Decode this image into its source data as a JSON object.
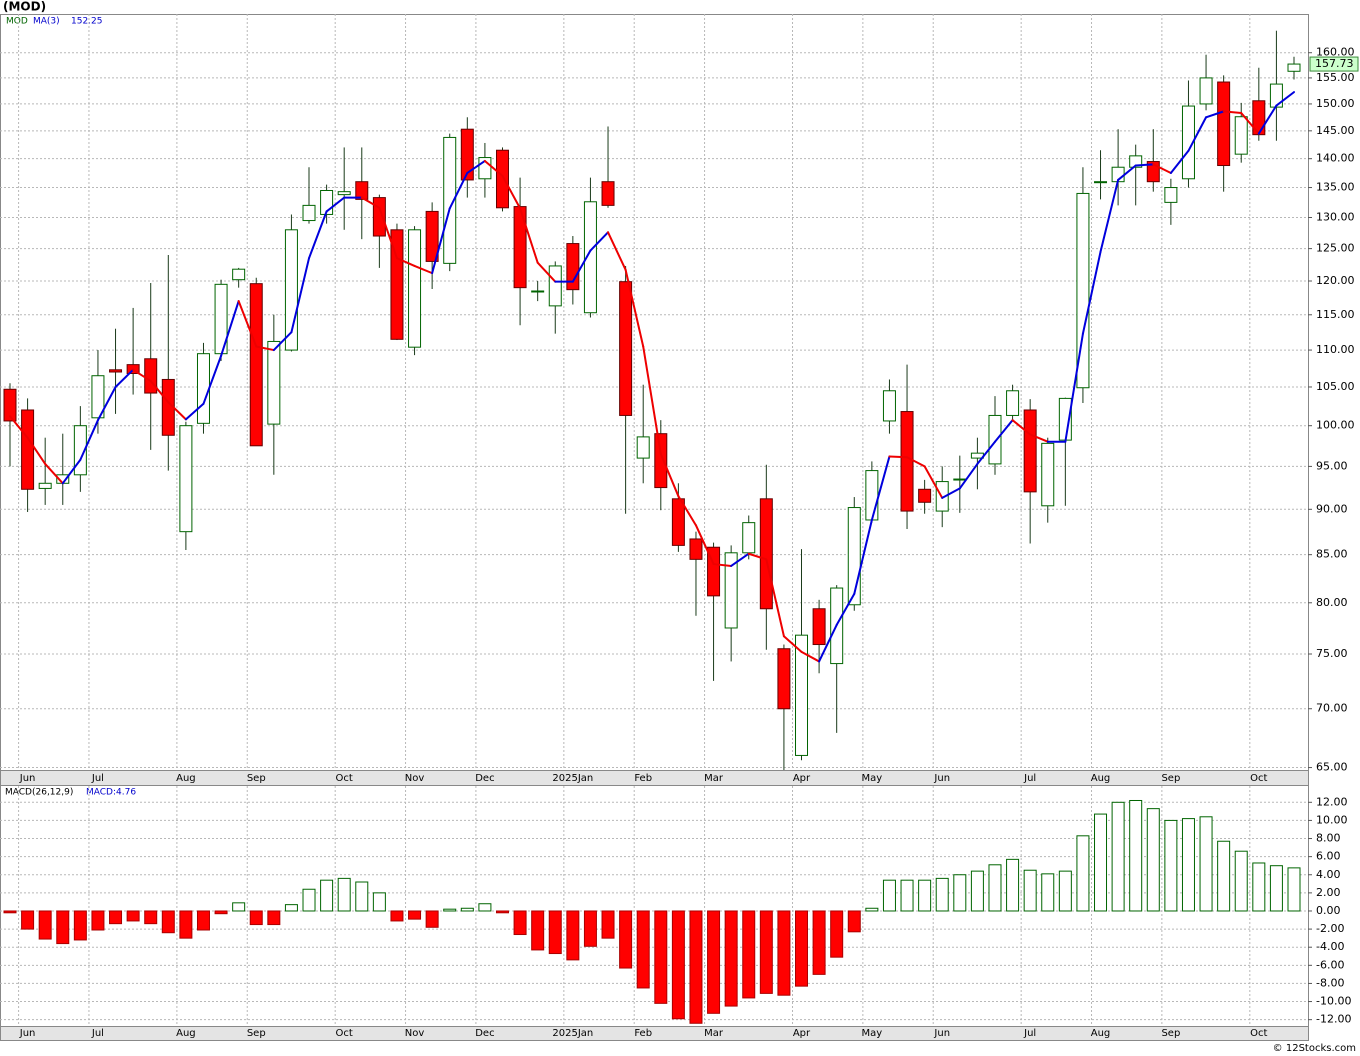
{
  "title": "(MOD)",
  "footer": "© 12Stocks.com",
  "chart_data": [
    {
      "type": "candlestick",
      "symbol": "MOD",
      "log_scale": true,
      "grid": true,
      "up_color": "#006400",
      "down_color": "#ff0000",
      "wick_color": "#1a3a1a",
      "categories": [
        null,
        "Jun",
        null,
        null,
        null,
        "Jul",
        null,
        null,
        null,
        null,
        "Aug",
        null,
        null,
        null,
        "Sep",
        null,
        null,
        null,
        null,
        "Oct",
        null,
        null,
        null,
        "Nov",
        null,
        null,
        null,
        "Dec",
        null,
        null,
        null,
        null,
        "2025Jan",
        null,
        null,
        null,
        "Feb",
        null,
        null,
        null,
        "Mar",
        null,
        null,
        null,
        null,
        "Apr",
        null,
        null,
        null,
        "May",
        null,
        null,
        null,
        "Jun",
        null,
        null,
        null,
        null,
        "Jul",
        null,
        null,
        null,
        "Aug",
        null,
        null,
        null,
        "Sep",
        null,
        null,
        null,
        null,
        "Oct",
        null,
        null
      ],
      "open": [
        104.7,
        102,
        92.4,
        93,
        94,
        101,
        107.3,
        108,
        108.8,
        106,
        87.5,
        100.3,
        109.5,
        120.2,
        119.6,
        100.2,
        110,
        129.5,
        130.5,
        133.8,
        136,
        133.3,
        128,
        110.4,
        131,
        122.7,
        145.3,
        136.5,
        141.5,
        131.8,
        118.5,
        116.3,
        125.8,
        115.3,
        136,
        119.9,
        96,
        99,
        91.2,
        86.7,
        85.8,
        77.5,
        85.2,
        91.2,
        75.5,
        66,
        79.4,
        74.1,
        79.8,
        88.8,
        100.6,
        101.8,
        92.3,
        89.8,
        93.5,
        96,
        95.3,
        101.3,
        102,
        90.4,
        98.2,
        104.9,
        136,
        136,
        138.5,
        139.5,
        132.5,
        136.5,
        150,
        154.2,
        140.8,
        150.6,
        149.4,
        156.3
      ],
      "high": [
        105.5,
        103.5,
        98.5,
        99,
        102.5,
        110,
        113,
        116,
        119.7,
        124,
        100.5,
        111,
        120.2,
        122,
        120.5,
        115,
        130.5,
        138.5,
        135.5,
        142,
        142,
        133.8,
        129,
        128.6,
        132.5,
        144.5,
        147.5,
        142.8,
        142,
        136.7,
        120,
        123,
        127,
        136.7,
        145.8,
        122.3,
        105.3,
        100.7,
        93,
        87.5,
        86.3,
        86,
        89.3,
        95.2,
        75.9,
        85.6,
        80.3,
        81.8,
        91.4,
        95.6,
        106,
        108,
        93.4,
        95,
        96.3,
        98.5,
        103.8,
        105.3,
        103.4,
        98.5,
        103.6,
        138.5,
        141.5,
        145.3,
        142.5,
        145.3,
        136.5,
        154.5,
        159.6,
        155.5,
        150.2,
        157,
        164.5,
        159.2
      ],
      "low": [
        95,
        89.7,
        90.5,
        90.5,
        92,
        99,
        101.5,
        104,
        97,
        94.5,
        85.5,
        99,
        108.5,
        119,
        97.5,
        94,
        109.8,
        129,
        129,
        128,
        126.5,
        122,
        111.4,
        109.3,
        118.8,
        121.5,
        133.3,
        133.3,
        131,
        113.5,
        117,
        112.3,
        116.5,
        114.6,
        131.6,
        89.5,
        93,
        89.9,
        85.3,
        78.7,
        72.5,
        74.3,
        84.5,
        75.4,
        64.8,
        65.6,
        73.2,
        67.9,
        79.2,
        88.5,
        99,
        87.8,
        89.5,
        88,
        89.6,
        92.3,
        94,
        100.5,
        86.2,
        88.5,
        90.4,
        102.9,
        133,
        132,
        132,
        134.3,
        128.8,
        135,
        148.8,
        134.3,
        139.3,
        143.2,
        143.2,
        154.7
      ],
      "close": [
        100.6,
        92.3,
        93,
        94,
        100,
        106.5,
        107,
        106.8,
        104.2,
        98.8,
        100,
        109.5,
        119.5,
        121.8,
        97.5,
        111.2,
        128,
        132,
        134.5,
        134.3,
        133,
        127,
        111.5,
        128,
        123,
        143.8,
        136.3,
        140.2,
        131.6,
        119,
        118.5,
        122.3,
        118.7,
        132.6,
        132,
        101.3,
        98.6,
        92.5,
        86,
        84.5,
        80.7,
        85.2,
        88.5,
        79.4,
        70,
        76.8,
        75.9,
        81.5,
        90.2,
        94.5,
        104.5,
        89.8,
        90.8,
        93.2,
        93.5,
        96.6,
        101.3,
        104.5,
        92,
        97.8,
        103.5,
        134,
        136,
        138.5,
        140.5,
        136,
        135,
        149.6,
        155,
        138.8,
        147.6,
        144.3,
        153.8,
        157.73
      ],
      "close_label": "157.73",
      "close_label_color": "#ccffcc",
      "ma": {
        "name": "MA(3)",
        "value_label": "152.25",
        "up_color": "#0000dd",
        "down_color": "#ee0000",
        "values": [
          101.2,
          98.5,
          95.3,
          93,
          95.8,
          100.7,
          105,
          107.3,
          105.8,
          103,
          100.8,
          102.8,
          109.2,
          117,
          110.5,
          110,
          112.5,
          123.5,
          131,
          133.3,
          133.3,
          131.6,
          123.5,
          122.3,
          121.2,
          131.5,
          137.5,
          139.6,
          137,
          131.5,
          122.8,
          119.9,
          119.9,
          124.7,
          127.6,
          121.7,
          110.5,
          96.5,
          91.5,
          88.2,
          84,
          83.8,
          85.1,
          84.5,
          76.7,
          75.2,
          74.3,
          77.8,
          80.9,
          88.8,
          96.2,
          96.1,
          95,
          91.3,
          92.4,
          95.3,
          98,
          100.7,
          98.9,
          98,
          98,
          112.3,
          124.5,
          136.3,
          138.8,
          139,
          137.5,
          141.4,
          147.5,
          148.6,
          148.3,
          144.5,
          149.7,
          152.25
        ]
      },
      "ylim": [
        64.8,
        168
      ],
      "yticks": [
        {
          "value": 65,
          "label": "65.00"
        },
        {
          "value": 70,
          "label": "70.00"
        },
        {
          "value": 75,
          "label": "75.00"
        },
        {
          "value": 80,
          "label": "80.00"
        },
        {
          "value": 85,
          "label": "85.00"
        },
        {
          "value": 90,
          "label": "90.00"
        },
        {
          "value": 95,
          "label": "95.00"
        },
        {
          "value": 100,
          "label": "100.00"
        },
        {
          "value": 105,
          "label": "105.00"
        },
        {
          "value": 110,
          "label": "110.00"
        },
        {
          "value": 115,
          "label": "115.00"
        },
        {
          "value": 120,
          "label": "120.00"
        },
        {
          "value": 125,
          "label": "125.00"
        },
        {
          "value": 130,
          "label": "130.00"
        },
        {
          "value": 135,
          "label": "135.00"
        },
        {
          "value": 140,
          "label": "140.00"
        },
        {
          "value": 145,
          "label": "145.00"
        },
        {
          "value": 150,
          "label": "150.00"
        },
        {
          "value": 155,
          "label": "155.00"
        },
        {
          "value": 160,
          "label": "160.00"
        }
      ]
    },
    {
      "type": "bar",
      "title": "MACD(26,12,9)",
      "value_label": "MACD:4.76",
      "grid": true,
      "up_color": "#006400",
      "down_color": "#ff0000",
      "categories": [
        null,
        "Jun",
        null,
        null,
        null,
        "Jul",
        null,
        null,
        null,
        null,
        "Aug",
        null,
        null,
        null,
        "Sep",
        null,
        null,
        null,
        null,
        "Oct",
        null,
        null,
        null,
        "Nov",
        null,
        null,
        null,
        "Dec",
        null,
        null,
        null,
        null,
        "2025Jan",
        null,
        null,
        null,
        "Feb",
        null,
        null,
        null,
        "Mar",
        null,
        null,
        null,
        null,
        "Apr",
        null,
        null,
        null,
        "May",
        null,
        null,
        null,
        "Jun",
        null,
        null,
        null,
        null,
        "Jul",
        null,
        null,
        null,
        "Aug",
        null,
        null,
        null,
        "Sep",
        null,
        null,
        null,
        null,
        "Oct",
        null,
        null
      ],
      "values": [
        -0.2,
        -2,
        -3.1,
        -3.6,
        -3.2,
        -2.1,
        -1.4,
        -1.1,
        -1.4,
        -2.4,
        -3,
        -2.1,
        -0.3,
        0.9,
        -1.5,
        -1.5,
        0.7,
        2.4,
        3.4,
        3.6,
        3.2,
        2,
        -1.1,
        -0.9,
        -1.8,
        0.2,
        0.3,
        0.8,
        -0.2,
        -2.6,
        -4.3,
        -4.7,
        -5.4,
        -3.9,
        -3,
        -6.3,
        -8.5,
        -10.2,
        -11.9,
        -12.4,
        -11.3,
        -10.5,
        -9.6,
        -9.1,
        -9.3,
        -8.3,
        -7,
        -5.1,
        -2.3,
        0.3,
        3.4,
        3.4,
        3.4,
        3.6,
        4,
        4.4,
        5.1,
        5.7,
        4.5,
        4.1,
        4.4,
        8.3,
        10.7,
        12,
        12.2,
        11.3,
        10,
        10.2,
        10.4,
        7.7,
        6.6,
        5.3,
        5,
        4.76
      ],
      "ylim": [
        -12.7,
        13.8
      ],
      "yticks": [
        {
          "value": -12,
          "label": "-12.00"
        },
        {
          "value": -10,
          "label": "-10.00"
        },
        {
          "value": -8,
          "label": "-8.00"
        },
        {
          "value": -6,
          "label": "-6.00"
        },
        {
          "value": -4,
          "label": "-4.00"
        },
        {
          "value": -2,
          "label": "-2.00"
        },
        {
          "value": 0,
          "label": "0.00"
        },
        {
          "value": 2,
          "label": "2.00"
        },
        {
          "value": 4,
          "label": "4.00"
        },
        {
          "value": 6,
          "label": "6.00"
        },
        {
          "value": 8,
          "label": "8.00"
        },
        {
          "value": 10,
          "label": "10.00"
        },
        {
          "value": 12,
          "label": "12.00"
        }
      ]
    }
  ]
}
